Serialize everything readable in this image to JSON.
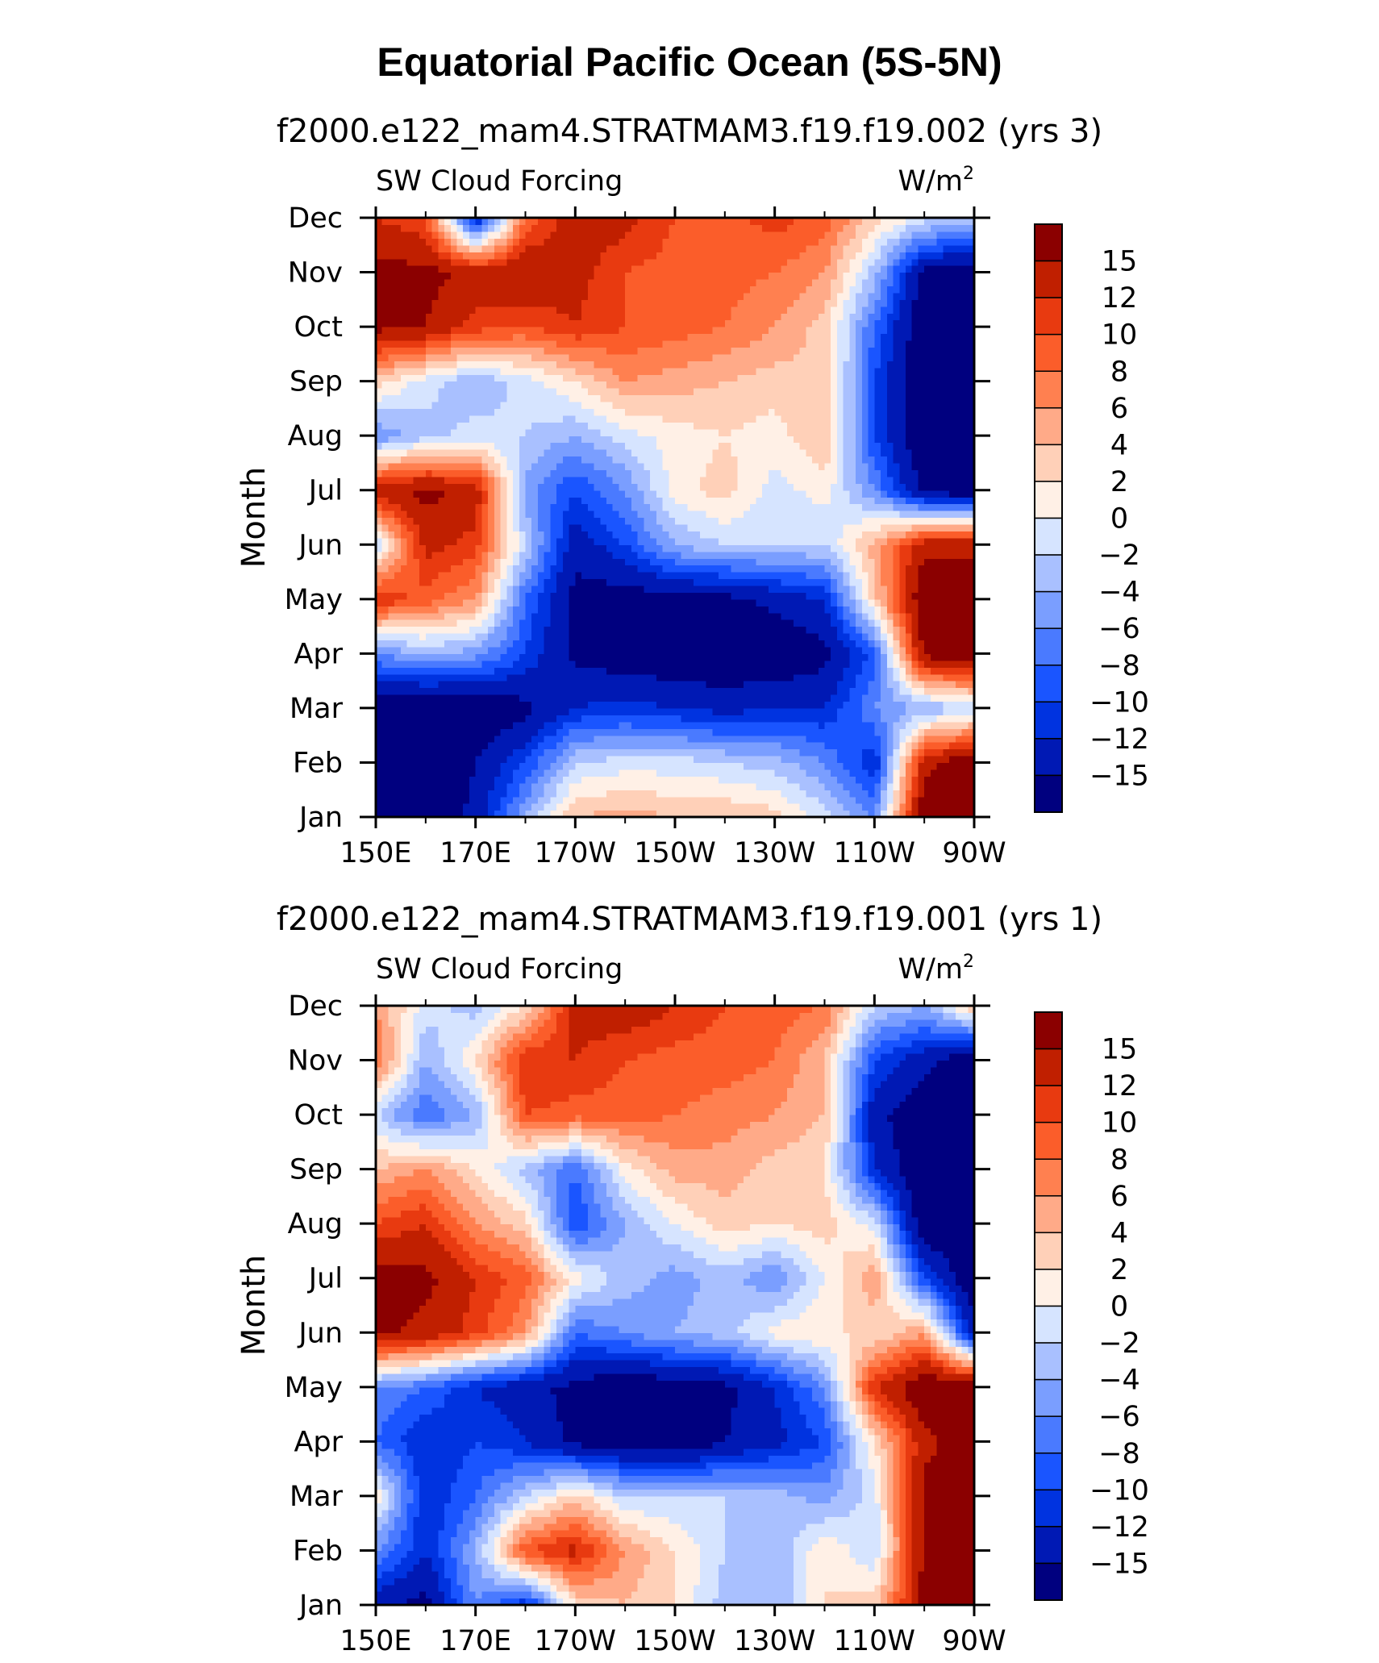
{
  "title": "Equatorial Pacific Ocean (5S-5N)",
  "colors": [
    "#00007f",
    "#0019b4",
    "#0033e0",
    "#1a55ff",
    "#4a7aff",
    "#7a9eff",
    "#a9c0ff",
    "#d6e4ff",
    "#fff0e6",
    "#ffd0b8",
    "#ffaa88",
    "#ff8050",
    "#fb5d2a",
    "#e83a10",
    "#c01f00",
    "#8b0000"
  ],
  "chart_data": [
    {
      "type": "heatmap",
      "subtitle": "f2000.e122_mam4.STRATMAM3.f19.f19.002 (yrs 3)",
      "left_label": "SW Cloud Forcing",
      "right_label": "W/m",
      "right_label_sup": "2",
      "ylabel": "Month",
      "x_ticks": [
        "150E",
        "170E",
        "170W",
        "150W",
        "130W",
        "110W",
        "90W"
      ],
      "y_ticks": [
        "Jan",
        "Feb",
        "Mar",
        "Apr",
        "May",
        "Jun",
        "Jul",
        "Aug",
        "Sep",
        "Oct",
        "Nov",
        "Dec"
      ],
      "colorbar_labels": [
        "15",
        "12",
        "10",
        "8",
        "6",
        "4",
        "2",
        "0",
        "−2",
        "−4",
        "−6",
        "−8",
        "−10",
        "−12",
        "−15"
      ],
      "grid_x": [
        150,
        160,
        170,
        180,
        190,
        200,
        210,
        220,
        230,
        240,
        250,
        260,
        270
      ],
      "grid_y": [
        "Jan",
        "Feb",
        "Mar",
        "Apr",
        "May",
        "Jun",
        "Jul",
        "Aug",
        "Sep",
        "Oct",
        "Nov",
        "Dec"
      ],
      "values": [
        [
          -18,
          -18,
          -14,
          -4,
          4,
          5,
          4,
          4,
          3,
          -1,
          -6,
          18,
          18
        ],
        [
          -18,
          -18,
          -15,
          -10,
          -2,
          -1,
          -1,
          -2,
          -3,
          -6,
          -12,
          14,
          18
        ],
        [
          -18,
          -18,
          -18,
          -16,
          -12,
          -11,
          -12,
          -13,
          -12,
          -12,
          -6,
          -4,
          -2
        ],
        [
          -6,
          -4,
          -5,
          -10,
          -16,
          -17,
          -18,
          -18,
          -18,
          -16,
          -9,
          16,
          18
        ],
        [
          12,
          9,
          6,
          -8,
          -16,
          -17,
          -16,
          -16,
          -14,
          -12,
          3,
          18,
          18
        ],
        [
          -2,
          13,
          11,
          -2,
          -14,
          -10,
          -4,
          -2,
          -2,
          -2,
          5,
          14,
          14
        ],
        [
          14,
          16,
          14,
          -5,
          -10,
          -6,
          1,
          3,
          -1,
          1,
          -6,
          -16,
          -18
        ],
        [
          -6,
          -3,
          -1,
          -2,
          -4,
          -1,
          1,
          2,
          1,
          4,
          -10,
          -18,
          -18
        ],
        [
          3,
          -1,
          -4,
          -1,
          2,
          6,
          5,
          4,
          3,
          4,
          -10,
          -18,
          -18
        ],
        [
          16,
          15,
          11,
          10,
          12,
          10,
          9,
          8,
          6,
          3,
          -8,
          -18,
          -18
        ],
        [
          16,
          16,
          14,
          15,
          13,
          10,
          9,
          9,
          8,
          6,
          -3,
          -16,
          -18
        ],
        [
          12,
          10,
          -13,
          8,
          14,
          13,
          10,
          9,
          11,
          9,
          3,
          -1,
          -2
        ]
      ]
    },
    {
      "type": "heatmap",
      "subtitle": "f2000.e122_mam4.STRATMAM3.f19.f19.001 (yrs 1)",
      "left_label": "SW Cloud Forcing",
      "right_label": "W/m",
      "right_label_sup": "2",
      "ylabel": "Month",
      "x_ticks": [
        "150E",
        "170E",
        "170W",
        "150W",
        "130W",
        "110W",
        "90W"
      ],
      "y_ticks": [
        "Jan",
        "Feb",
        "Mar",
        "Apr",
        "May",
        "Jun",
        "Jul",
        "Aug",
        "Sep",
        "Oct",
        "Nov",
        "Dec"
      ],
      "colorbar_labels": [
        "15",
        "12",
        "10",
        "8",
        "6",
        "4",
        "2",
        "0",
        "−2",
        "−4",
        "−6",
        "−8",
        "−10",
        "−12",
        "−15"
      ],
      "grid_x": [
        150,
        160,
        170,
        180,
        190,
        200,
        210,
        220,
        230,
        240,
        250,
        260,
        270
      ],
      "grid_y": [
        "Jan",
        "Feb",
        "Mar",
        "Apr",
        "May",
        "Jun",
        "Jul",
        "Aug",
        "Sep",
        "Oct",
        "Nov",
        "Dec"
      ],
      "values": [
        [
          -14,
          -16,
          -6,
          -12,
          2,
          4,
          2,
          -3,
          -4,
          2,
          3,
          16,
          18
        ],
        [
          -6,
          -12,
          -4,
          10,
          13,
          6,
          2,
          -2,
          -4,
          2,
          -2,
          16,
          18
        ],
        [
          2,
          -12,
          -8,
          -2,
          3,
          -2,
          -2,
          -2,
          -3,
          -5,
          -1,
          16,
          18
        ],
        [
          -8,
          -12,
          -10,
          -12,
          -16,
          -17,
          -18,
          -15,
          -13,
          -10,
          2,
          14,
          17
        ],
        [
          -6,
          -8,
          -12,
          -14,
          -16,
          -18,
          -17,
          -16,
          -12,
          -6,
          12,
          18,
          18
        ],
        [
          16,
          14,
          11,
          6,
          -8,
          -6,
          -4,
          -3,
          1,
          2,
          2,
          6,
          -14
        ],
        [
          17,
          16,
          12,
          9,
          1,
          -3,
          -5,
          -3,
          -6,
          0,
          6,
          -10,
          -18
        ],
        [
          10,
          12,
          6,
          3,
          -10,
          -4,
          0,
          3,
          2,
          3,
          -1,
          -18,
          -18
        ],
        [
          4,
          6,
          2,
          -3,
          -8,
          1,
          5,
          5,
          3,
          2,
          -12,
          -18,
          -18
        ],
        [
          -2,
          -8,
          -4,
          10,
          9,
          9,
          8,
          7,
          6,
          4,
          -14,
          -18,
          -18
        ],
        [
          8,
          -4,
          2,
          12,
          12,
          10,
          9,
          9,
          8,
          4,
          -10,
          -14,
          -18
        ],
        [
          6,
          -1,
          -3,
          2,
          13,
          14,
          12,
          10,
          9,
          8,
          -2,
          -4,
          4
        ]
      ]
    }
  ]
}
